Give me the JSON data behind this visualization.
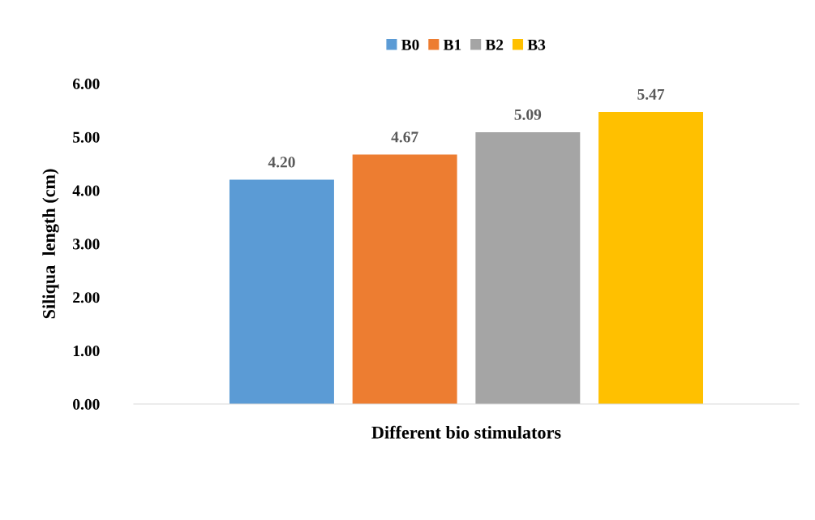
{
  "chart_data": {
    "type": "bar",
    "xlabel": "Different bio stimulators",
    "ylabel": "Siliqua  length (cm)",
    "categories": [
      null
    ],
    "series": [
      {
        "name": "B0",
        "color": "#5b9bd5",
        "values": [
          4.2
        ],
        "value_labels": [
          "4.20"
        ]
      },
      {
        "name": "B1",
        "color": "#ed7d31",
        "values": [
          4.67
        ],
        "value_labels": [
          "4.67"
        ]
      },
      {
        "name": "B2",
        "color": "#a5a5a5",
        "values": [
          5.09
        ],
        "value_labels": [
          "5.09"
        ]
      },
      {
        "name": "B3",
        "color": "#ffc000",
        "values": [
          5.47
        ],
        "value_labels": [
          "5.47"
        ]
      }
    ],
    "ylim": [
      0,
      6
    ],
    "yticks": [
      {
        "value": 0,
        "label": "0.00"
      },
      {
        "value": 1,
        "label": "1.00"
      },
      {
        "value": 2,
        "label": "2.00"
      },
      {
        "value": 3,
        "label": "3.00"
      },
      {
        "value": 4,
        "label": "4.00"
      },
      {
        "value": 5,
        "label": "5.00"
      },
      {
        "value": 6,
        "label": "6.00"
      }
    ],
    "grid": false,
    "legend": "top"
  }
}
